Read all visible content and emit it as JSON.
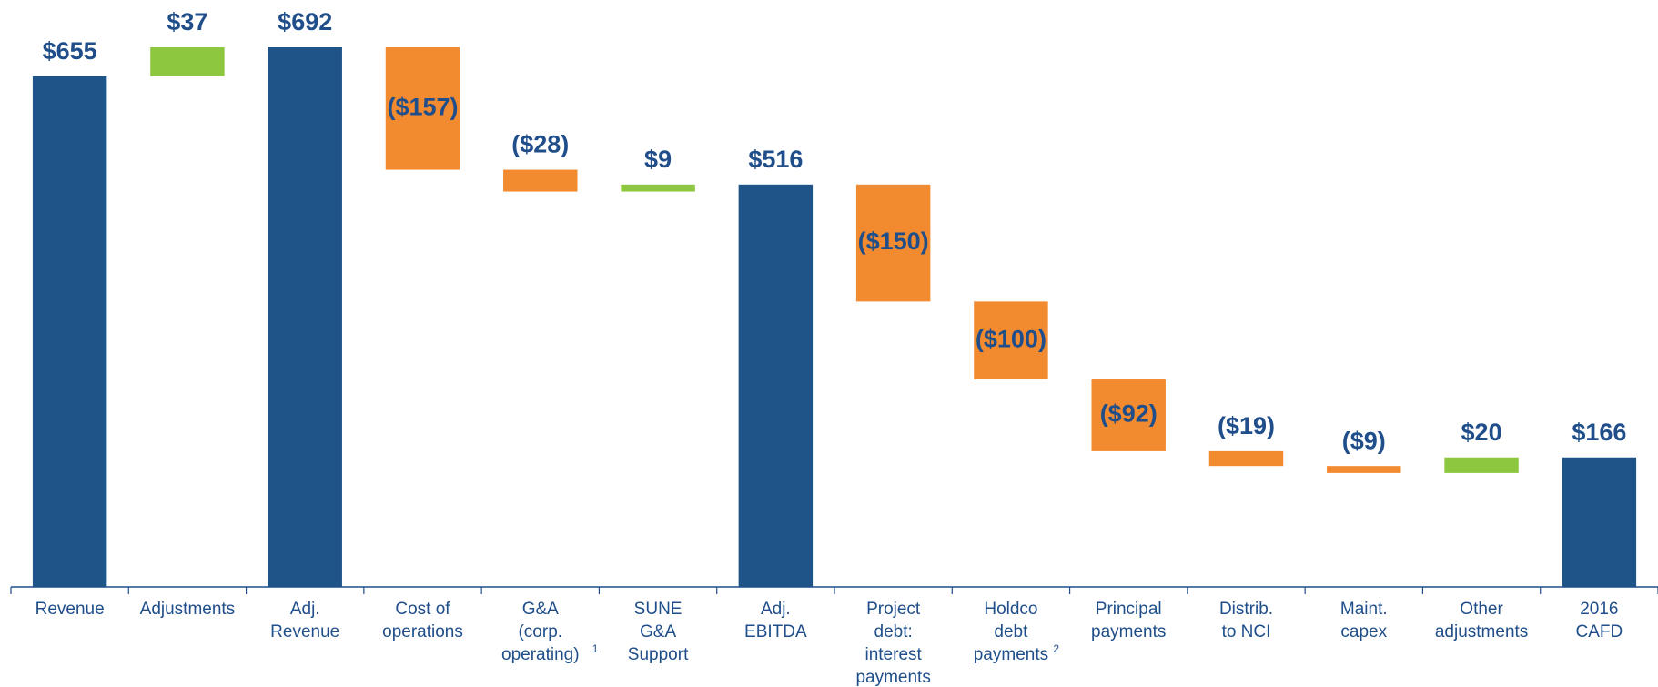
{
  "chart_data": {
    "type": "waterfall",
    "categories": [
      "Revenue",
      "Adjustments",
      "Adj.\nRevenue",
      "Cost of\noperations",
      "G&A\n(corp.\noperating)",
      "SUNE\nG&A\nSupport",
      "Adj.\nEBITDA",
      "Project\ndebt:\ninterest\npayments",
      "Holdco\ndebt\npayments",
      "Principal\npayments",
      "Distrib.\nto NCI",
      "Maint.\ncapex",
      "Other\nadjustments",
      "2016\nCAFD"
    ],
    "category_footnotes": [
      null,
      null,
      null,
      null,
      "1",
      null,
      null,
      null,
      "2",
      null,
      null,
      null,
      null,
      null
    ],
    "measures": [
      "total",
      "relative",
      "total",
      "relative",
      "relative",
      "relative",
      "total",
      "relative",
      "relative",
      "relative",
      "relative",
      "relative",
      "relative",
      "total"
    ],
    "values": [
      655,
      37,
      692,
      -157,
      -28,
      9,
      516,
      -150,
      -100,
      -92,
      -19,
      -9,
      20,
      166
    ],
    "value_labels": [
      "$655",
      "$37",
      "$692",
      "($157)",
      "($28)",
      "$9",
      "$516",
      "($150)",
      "($100)",
      "($92)",
      "($19)",
      "($9)",
      "$20",
      "$166"
    ],
    "colors": {
      "total": "#1f5488",
      "increase": "#8dc63f",
      "decrease": "#f28b30"
    }
  }
}
